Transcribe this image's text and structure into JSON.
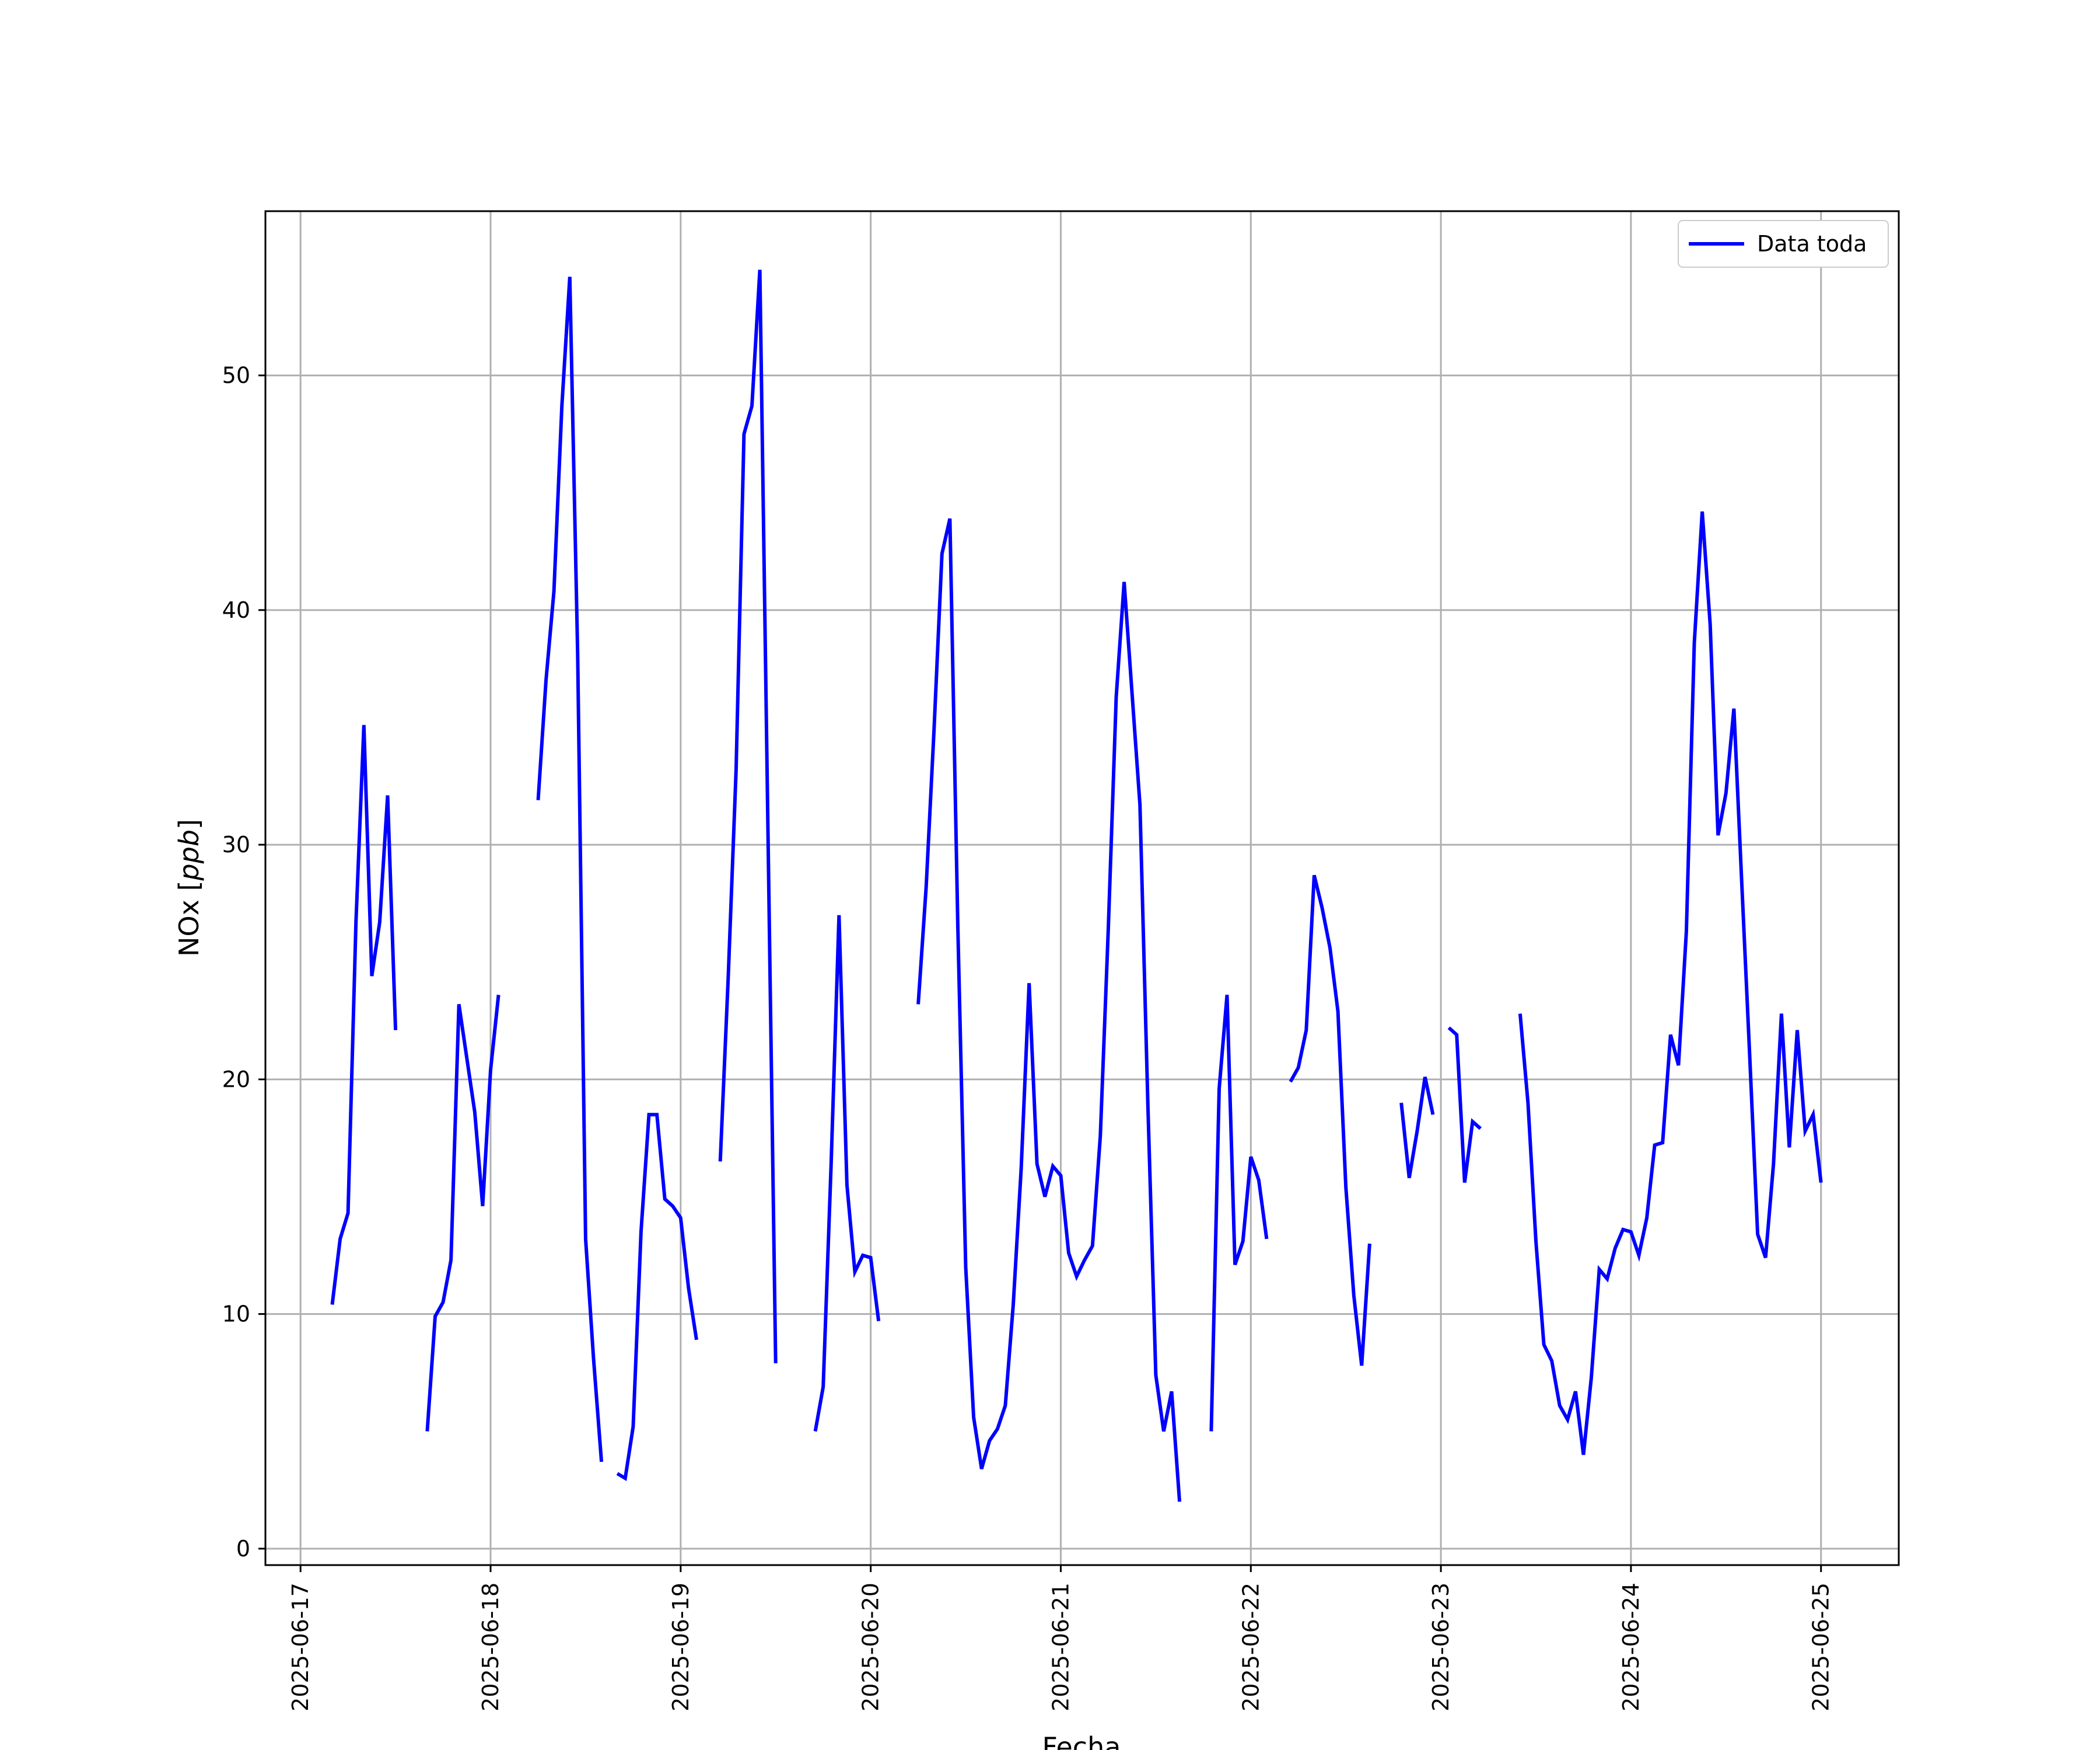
{
  "chart_data": {
    "type": "line",
    "xlabel": "Fecha",
    "ylabel_prefix": "NOx [",
    "ylabel_unit": "ppb",
    "ylabel_suffix": "]",
    "x_tick_labels": [
      "2025-06-17",
      "2025-06-18",
      "2025-06-19",
      "2025-06-20",
      "2025-06-21",
      "2025-06-22",
      "2025-06-23",
      "2025-06-24",
      "2025-06-25"
    ],
    "y_ticks": [
      0,
      10,
      20,
      30,
      40,
      50
    ],
    "xlim": [
      "2025-06-16T19:34",
      "2025-06-25T09:49"
    ],
    "ylim": [
      -0.7,
      57.0
    ],
    "grid": true,
    "legend_position": "top-right",
    "colors": {
      "line": "#0000ff",
      "grid": "#b0b0b0",
      "axes": "#000000"
    },
    "series": [
      {
        "name": "Data toda",
        "segments": [
          [
            [
              "2025-06-17T04:00",
              10.4
            ],
            [
              "2025-06-17T05:00",
              13.2
            ],
            [
              "2025-06-17T06:00",
              14.3
            ],
            [
              "2025-06-17T07:00",
              26.7
            ],
            [
              "2025-06-17T08:00",
              35.1
            ],
            [
              "2025-06-17T09:00",
              24.4
            ],
            [
              "2025-06-17T10:00",
              26.7
            ],
            [
              "2025-06-17T11:00",
              32.1
            ],
            [
              "2025-06-17T12:00",
              22.1
            ]
          ],
          [
            [
              "2025-06-17T16:00",
              5.0
            ],
            [
              "2025-06-17T17:00",
              9.9
            ],
            [
              "2025-06-17T18:00",
              10.5
            ],
            [
              "2025-06-17T19:00",
              12.3
            ],
            [
              "2025-06-17T20:00",
              23.2
            ],
            [
              "2025-06-17T22:00",
              18.6
            ],
            [
              "2025-06-17T23:00",
              14.6
            ],
            [
              "2025-06-18T00:00",
              20.4
            ],
            [
              "2025-06-18T01:00",
              23.6
            ]
          ],
          [
            [
              "2025-06-18T06:00",
              31.9
            ],
            [
              "2025-06-18T07:00",
              37.0
            ],
            [
              "2025-06-18T08:00",
              40.8
            ],
            [
              "2025-06-18T09:00",
              48.7
            ],
            [
              "2025-06-18T10:00",
              54.2
            ],
            [
              "2025-06-18T11:00",
              38.1
            ],
            [
              "2025-06-18T12:00",
              13.2
            ],
            [
              "2025-06-18T13:00",
              8.1
            ],
            [
              "2025-06-18T14:00",
              3.7
            ]
          ],
          [
            [
              "2025-06-18T16:00",
              3.2
            ],
            [
              "2025-06-18T17:00",
              3.0
            ],
            [
              "2025-06-18T18:00",
              5.2
            ],
            [
              "2025-06-18T19:00",
              13.5
            ],
            [
              "2025-06-18T20:00",
              18.5
            ],
            [
              "2025-06-18T21:00",
              18.5
            ],
            [
              "2025-06-18T22:00",
              14.9
            ],
            [
              "2025-06-18T23:00",
              14.6
            ],
            [
              "2025-06-19T00:00",
              14.1
            ],
            [
              "2025-06-19T01:00",
              11.1
            ],
            [
              "2025-06-19T02:00",
              8.9
            ]
          ],
          [
            [
              "2025-06-19T05:00",
              16.5
            ],
            [
              "2025-06-19T06:00",
              24.3
            ],
            [
              "2025-06-19T07:00",
              33.2
            ],
            [
              "2025-06-19T08:00",
              47.5
            ],
            [
              "2025-06-19T09:00",
              48.7
            ],
            [
              "2025-06-19T10:00",
              54.5
            ],
            [
              "2025-06-19T12:00",
              7.9
            ]
          ],
          [
            [
              "2025-06-19T17:00",
              5.0
            ],
            [
              "2025-06-19T18:00",
              6.9
            ],
            [
              "2025-06-19T19:00",
              16.4
            ],
            [
              "2025-06-19T20:00",
              27.0
            ],
            [
              "2025-06-19T21:00",
              15.5
            ],
            [
              "2025-06-19T22:00",
              11.8
            ],
            [
              "2025-06-19T23:00",
              12.5
            ],
            [
              "2025-06-20T00:00",
              12.4
            ],
            [
              "2025-06-20T01:00",
              9.7
            ]
          ],
          [
            [
              "2025-06-20T06:00",
              23.2
            ],
            [
              "2025-06-20T07:00",
              28.2
            ],
            [
              "2025-06-20T08:00",
              34.9
            ],
            [
              "2025-06-20T09:00",
              42.4
            ],
            [
              "2025-06-20T10:00",
              43.9
            ],
            [
              "2025-06-20T11:00",
              26.5
            ],
            [
              "2025-06-20T12:00",
              12.0
            ],
            [
              "2025-06-20T13:00",
              5.6
            ],
            [
              "2025-06-20T14:00",
              3.4
            ],
            [
              "2025-06-20T15:00",
              4.6
            ],
            [
              "2025-06-20T16:00",
              5.1
            ],
            [
              "2025-06-20T17:00",
              6.1
            ],
            [
              "2025-06-20T18:00",
              10.4
            ],
            [
              "2025-06-20T19:00",
              16.2
            ],
            [
              "2025-06-20T20:00",
              24.1
            ],
            [
              "2025-06-20T21:00",
              16.4
            ],
            [
              "2025-06-20T22:00",
              15.0
            ],
            [
              "2025-06-20T23:00",
              16.3
            ],
            [
              "2025-06-21T00:00",
              15.9
            ],
            [
              "2025-06-21T01:00",
              12.6
            ],
            [
              "2025-06-21T02:00",
              11.6
            ],
            [
              "2025-06-21T03:00",
              12.3
            ],
            [
              "2025-06-21T04:00",
              12.9
            ],
            [
              "2025-06-21T05:00",
              17.6
            ],
            [
              "2025-06-21T06:00",
              26.4
            ],
            [
              "2025-06-21T07:00",
              36.3
            ],
            [
              "2025-06-21T08:00",
              41.2
            ],
            [
              "2025-06-21T10:00",
              31.7
            ],
            [
              "2025-06-21T11:00",
              18.9
            ],
            [
              "2025-06-21T12:00",
              7.4
            ],
            [
              "2025-06-21T13:00",
              5.0
            ],
            [
              "2025-06-21T14:00",
              6.7
            ],
            [
              "2025-06-21T15:00",
              2.0
            ]
          ],
          [
            [
              "2025-06-21T19:00",
              5.0
            ],
            [
              "2025-06-21T20:00",
              19.6
            ],
            [
              "2025-06-21T21:00",
              23.6
            ],
            [
              "2025-06-21T22:00",
              12.1
            ],
            [
              "2025-06-21T23:00",
              13.1
            ],
            [
              "2025-06-22T00:00",
              16.7
            ],
            [
              "2025-06-22T01:00",
              15.7
            ],
            [
              "2025-06-22T02:00",
              13.2
            ]
          ],
          [
            [
              "2025-06-22T05:00",
              19.9
            ],
            [
              "2025-06-22T06:00",
              20.5
            ],
            [
              "2025-06-22T07:00",
              22.1
            ],
            [
              "2025-06-22T08:00",
              28.7
            ],
            [
              "2025-06-22T09:00",
              27.3
            ],
            [
              "2025-06-22T10:00",
              25.6
            ],
            [
              "2025-06-22T11:00",
              22.9
            ],
            [
              "2025-06-22T12:00",
              15.4
            ],
            [
              "2025-06-22T13:00",
              10.8
            ],
            [
              "2025-06-22T14:00",
              7.8
            ],
            [
              "2025-06-22T15:00",
              13.0
            ]
          ],
          [
            [
              "2025-06-22T19:00",
              19.0
            ],
            [
              "2025-06-22T20:00",
              15.8
            ],
            [
              "2025-06-22T21:00",
              17.8
            ],
            [
              "2025-06-22T22:00",
              20.1
            ],
            [
              "2025-06-22T23:00",
              18.5
            ]
          ],
          [
            [
              "2025-06-23T01:00",
              22.2
            ],
            [
              "2025-06-23T02:00",
              21.9
            ],
            [
              "2025-06-23T03:00",
              15.6
            ],
            [
              "2025-06-23T04:00",
              18.2
            ],
            [
              "2025-06-23T05:00",
              17.9
            ]
          ],
          [
            [
              "2025-06-23T10:00",
              22.8
            ],
            [
              "2025-06-23T11:00",
              19.0
            ],
            [
              "2025-06-23T12:00",
              13.1
            ],
            [
              "2025-06-23T13:00",
              8.7
            ],
            [
              "2025-06-23T14:00",
              8.0
            ],
            [
              "2025-06-23T15:00",
              6.1
            ],
            [
              "2025-06-23T16:00",
              5.5
            ],
            [
              "2025-06-23T17:00",
              6.7
            ],
            [
              "2025-06-23T18:00",
              4.0
            ],
            [
              "2025-06-23T19:00",
              7.3
            ],
            [
              "2025-06-23T20:00",
              11.9
            ],
            [
              "2025-06-23T21:00",
              11.5
            ],
            [
              "2025-06-23T22:00",
              12.8
            ],
            [
              "2025-06-23T23:00",
              13.6
            ],
            [
              "2025-06-24T00:00",
              13.5
            ],
            [
              "2025-06-24T01:00",
              12.5
            ],
            [
              "2025-06-24T02:00",
              14.1
            ],
            [
              "2025-06-24T03:00",
              17.2
            ],
            [
              "2025-06-24T04:00",
              17.3
            ],
            [
              "2025-06-24T05:00",
              21.9
            ],
            [
              "2025-06-24T06:00",
              20.6
            ],
            [
              "2025-06-24T07:00",
              26.3
            ],
            [
              "2025-06-24T08:00",
              38.6
            ],
            [
              "2025-06-24T09:00",
              44.2
            ],
            [
              "2025-06-24T10:00",
              39.4
            ],
            [
              "2025-06-24T11:00",
              30.4
            ],
            [
              "2025-06-24T12:00",
              32.2
            ],
            [
              "2025-06-24T13:00",
              35.8
            ],
            [
              "2025-06-24T14:00",
              28.3
            ],
            [
              "2025-06-24T15:00",
              21.0
            ],
            [
              "2025-06-24T16:00",
              13.4
            ],
            [
              "2025-06-24T17:00",
              12.4
            ],
            [
              "2025-06-24T18:00",
              16.4
            ],
            [
              "2025-06-24T19:00",
              22.8
            ],
            [
              "2025-06-24T20:00",
              17.1
            ],
            [
              "2025-06-24T21:00",
              22.1
            ],
            [
              "2025-06-24T22:00",
              17.8
            ],
            [
              "2025-06-24T23:00",
              18.5
            ],
            [
              "2025-06-25T00:00",
              15.6
            ]
          ]
        ]
      }
    ]
  }
}
